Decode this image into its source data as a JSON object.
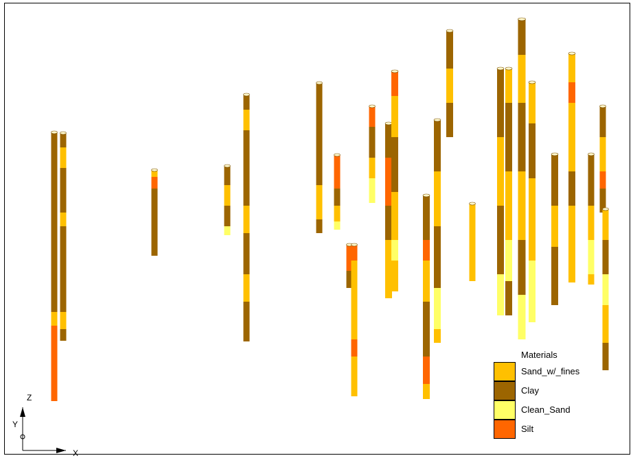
{
  "legend": {
    "title": "Materials",
    "items": [
      {
        "label": "Sand_w/_fines",
        "color": "#FFC000"
      },
      {
        "label": "Clay",
        "color": "#9C6500"
      },
      {
        "label": "Clean_Sand",
        "color": "#FFFF66"
      },
      {
        "label": "Silt",
        "color": "#FF6600"
      }
    ]
  },
  "axes": {
    "z_label": "Z",
    "y_label": "Y",
    "x_label": "X"
  }
}
